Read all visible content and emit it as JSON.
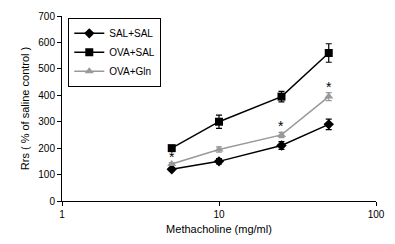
{
  "chart_data": {
    "type": "line",
    "x_label": "Methacholine (mg/ml)",
    "y_label": "Rrs ( % of saline control )",
    "x": [
      5,
      10,
      25,
      50
    ],
    "series": [
      {
        "name": "SAL+SAL",
        "color": "#000000",
        "marker": "diamond",
        "values": [
          120,
          150,
          210,
          290
        ],
        "errors": [
          5,
          10,
          15,
          20
        ]
      },
      {
        "name": "OVA+SAL",
        "color": "#000000",
        "marker": "square",
        "values": [
          200,
          300,
          395,
          560
        ],
        "errors": [
          5,
          25,
          20,
          35
        ]
      },
      {
        "name": "OVA+Gln",
        "color": "#999999",
        "marker": "triangle-up",
        "values": [
          140,
          195,
          250,
          395
        ],
        "errors": [
          5,
          10,
          10,
          15
        ]
      }
    ],
    "annotations": [
      {
        "text": "*",
        "x": 5,
        "series": "OVA+Gln"
      },
      {
        "text": "*",
        "x": 25,
        "series": "OVA+Gln"
      },
      {
        "text": "*",
        "x": 50,
        "series": "OVA+Gln"
      }
    ],
    "log": "x",
    "xlim": [
      1,
      100
    ],
    "xticks": [
      1,
      10,
      100
    ],
    "ylim": [
      0,
      700
    ],
    "yticks": [
      0,
      100,
      200,
      300,
      400,
      500,
      600,
      700
    ],
    "grid": false,
    "legend": "top-left"
  }
}
